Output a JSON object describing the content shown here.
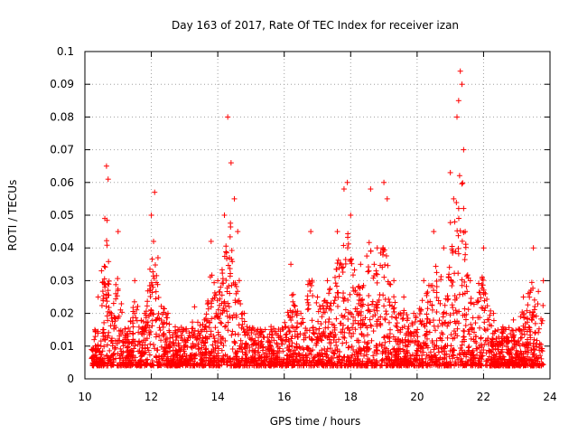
{
  "chart_data": {
    "type": "scatter",
    "title": "Day 163 of 2017, Rate Of TEC Index for receiver izan",
    "xlabel": "GPS time / hours",
    "ylabel": "ROTI / TECUs",
    "xlim": [
      10,
      24
    ],
    "ylim": [
      0,
      0.1
    ],
    "xticks": [
      10,
      12,
      14,
      16,
      18,
      20,
      22,
      24
    ],
    "xtick_labels": [
      "10",
      "12",
      "14",
      "16",
      "18",
      "20",
      "22",
      "24"
    ],
    "yticks": [
      0,
      0.01,
      0.02,
      0.03,
      0.04,
      0.05,
      0.06,
      0.07,
      0.08,
      0.09,
      0.1
    ],
    "ytick_labels": [
      "0",
      "0.01",
      "0.02",
      "0.03",
      "0.04",
      "0.05",
      "0.06",
      "0.07",
      "0.08",
      "0.09",
      "0.1"
    ],
    "grid": true,
    "marker": "+",
    "color": "#ff0000",
    "series": [
      {
        "name": "ROTI",
        "x": [
          10.2,
          10.3,
          10.4,
          10.5,
          10.6,
          10.65,
          10.7,
          10.8,
          11.0,
          11.2,
          11.5,
          11.8,
          12.0,
          12.1,
          12.2,
          12.5,
          12.8,
          13.0,
          13.3,
          13.6,
          13.8,
          14.0,
          14.2,
          14.3,
          14.4,
          14.5,
          14.6,
          14.8,
          15.0,
          15.3,
          15.6,
          15.9,
          16.2,
          16.5,
          16.8,
          17.0,
          17.3,
          17.6,
          17.8,
          17.9,
          18.0,
          18.3,
          18.6,
          18.8,
          19.0,
          19.1,
          19.3,
          19.6,
          19.9,
          20.2,
          20.5,
          20.8,
          21.0,
          21.1,
          21.2,
          21.25,
          21.3,
          21.35,
          21.4,
          21.6,
          22.0,
          22.3,
          22.6,
          22.9,
          23.2,
          23.5,
          23.8
        ],
        "y": [
          0.009,
          0.015,
          0.025,
          0.033,
          0.049,
          0.065,
          0.061,
          0.02,
          0.045,
          0.012,
          0.03,
          0.02,
          0.05,
          0.057,
          0.037,
          0.02,
          0.015,
          0.01,
          0.022,
          0.018,
          0.042,
          0.03,
          0.05,
          0.08,
          0.066,
          0.055,
          0.045,
          0.02,
          0.012,
          0.01,
          0.015,
          0.012,
          0.035,
          0.02,
          0.045,
          0.025,
          0.03,
          0.045,
          0.058,
          0.06,
          0.05,
          0.035,
          0.058,
          0.04,
          0.06,
          0.055,
          0.03,
          0.025,
          0.02,
          0.03,
          0.045,
          0.04,
          0.063,
          0.055,
          0.08,
          0.085,
          0.094,
          0.09,
          0.07,
          0.03,
          0.04,
          0.02,
          0.015,
          0.018,
          0.025,
          0.04,
          0.03
        ]
      }
    ]
  }
}
